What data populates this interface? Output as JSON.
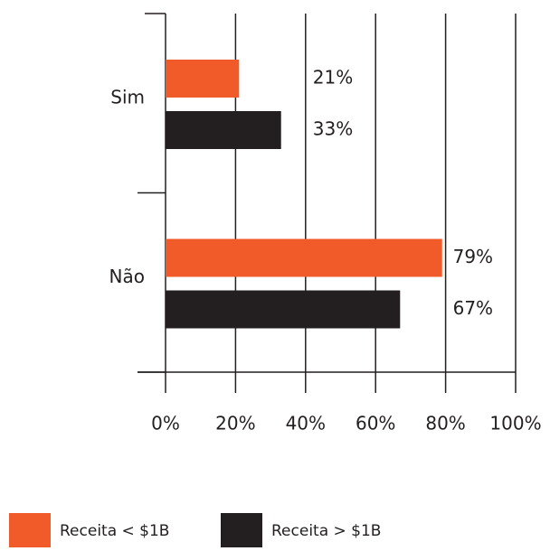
{
  "chart_data": {
    "type": "bar",
    "orientation": "horizontal",
    "categories": [
      "Sim",
      "Não"
    ],
    "series": [
      {
        "name": "Receita < $1B",
        "color": "#f15a29",
        "values": [
          21,
          79
        ],
        "value_labels": [
          "21%",
          "79%"
        ]
      },
      {
        "name": "Receita > $1B",
        "color": "#231f20",
        "values": [
          33,
          67
        ],
        "value_labels": [
          "33%",
          "67%"
        ]
      }
    ],
    "xlim": [
      0,
      100
    ],
    "xticks": [
      {
        "value": 0,
        "label": "0%"
      },
      {
        "value": 20,
        "label": "20%"
      },
      {
        "value": 40,
        "label": "40%"
      },
      {
        "value": 60,
        "label": "60%"
      },
      {
        "value": 80,
        "label": "80%"
      },
      {
        "value": 100,
        "label": "100%"
      }
    ],
    "grid": true,
    "legend": "bottom"
  }
}
